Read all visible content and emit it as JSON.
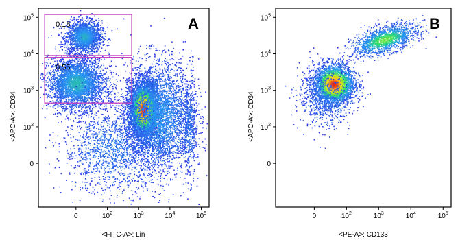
{
  "figure": {
    "type": "flow-cytometry-panels"
  },
  "chart_data": [
    {
      "type": "scatter",
      "panel_label": "A",
      "xlabel": "<FITC-A>: Lin",
      "ylabel": "<APC-A>: CD34",
      "x_ticks": [
        "0",
        "10^2",
        "10^3",
        "10^4",
        "10^5"
      ],
      "y_ticks": [
        "0",
        "10^2",
        "10^3",
        "10^4",
        "10^5"
      ],
      "x_scale": "biexponential",
      "y_scale": "biexponential",
      "density_coloring": "blue-green-yellow-red (pseudocolor)",
      "gates": [
        {
          "label": "0.18",
          "x_range": [
            -100,
            600
          ],
          "y_range": [
            9000,
            120000
          ]
        },
        {
          "label": "0.55",
          "x_range": [
            -100,
            600
          ],
          "y_range": [
            450,
            8000
          ]
        }
      ],
      "populations": [
        {
          "x_center": 25,
          "y_center": 30000,
          "spread": "moderate"
        },
        {
          "x_center": 0,
          "y_center": 1600,
          "spread": "broad"
        },
        {
          "x_center": 1400,
          "y_center": 300,
          "spread": "densest"
        },
        {
          "x_center": 4000,
          "y_center": 200,
          "spread": "broad tail"
        },
        {
          "x_center": 40000,
          "y_center": 100,
          "spread": "sparse"
        }
      ]
    },
    {
      "type": "scatter",
      "panel_label": "B",
      "xlabel": "<PE-A>: CD133",
      "ylabel": "<APC-A>: CD34",
      "x_ticks": [
        "0",
        "10^2",
        "10^3",
        "10^4",
        "10^5"
      ],
      "y_ticks": [
        "0",
        "10^2",
        "10^3",
        "10^4",
        "10^5"
      ],
      "x_scale": "biexponential",
      "y_scale": "biexponential",
      "density_coloring": "blue-green-yellow-red (pseudocolor)",
      "populations": [
        {
          "x_center": 60,
          "y_center": 1500,
          "spread": "densest"
        },
        {
          "x_center": 1500,
          "y_center": 25000,
          "spread": "elongated"
        }
      ]
    }
  ]
}
